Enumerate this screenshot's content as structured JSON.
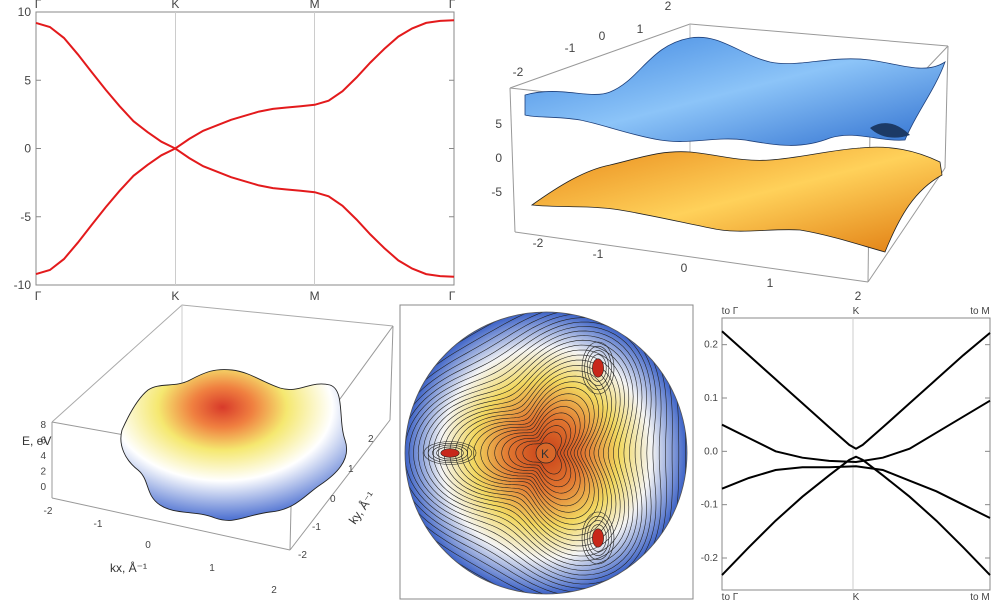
{
  "chart_data": [
    {
      "type": "line",
      "panel": "band-structure-path",
      "x_ticks": [
        "Γ",
        "K",
        "M",
        "Γ"
      ],
      "y_ticks": [
        10,
        5,
        0,
        -5,
        -10
      ],
      "ylim": [
        -10,
        10
      ],
      "grid": "vertical at high-symmetry points",
      "line_color": "#e31a1c",
      "series": [
        {
          "x": [
            0,
            0.1,
            0.2,
            0.3,
            0.4,
            0.5,
            0.6,
            0.7,
            0.8,
            0.9,
            1.0,
            1.1,
            1.2,
            1.3,
            1.4,
            1.5,
            1.6,
            1.7,
            1.8,
            1.9,
            2.0,
            2.1,
            2.2,
            2.3,
            2.4,
            2.5,
            2.6,
            2.7,
            2.8,
            2.9,
            3.0
          ],
          "y": [
            9.2,
            8.9,
            8.1,
            6.9,
            5.6,
            4.3,
            3.1,
            2.0,
            1.2,
            0.5,
            0,
            0.7,
            1.3,
            1.7,
            2.1,
            2.4,
            2.7,
            2.9,
            3.0,
            3.1,
            3.2,
            3.5,
            4.2,
            5.2,
            6.3,
            7.3,
            8.2,
            8.8,
            9.2,
            9.35,
            9.4
          ]
        },
        {
          "x": [
            0,
            0.1,
            0.2,
            0.3,
            0.4,
            0.5,
            0.6,
            0.7,
            0.8,
            0.9,
            1.0,
            1.1,
            1.2,
            1.3,
            1.4,
            1.5,
            1.6,
            1.7,
            1.8,
            1.9,
            2.0,
            2.1,
            2.2,
            2.3,
            2.4,
            2.5,
            2.6,
            2.7,
            2.8,
            2.9,
            3.0
          ],
          "y": [
            -9.2,
            -8.9,
            -8.1,
            -6.9,
            -5.6,
            -4.3,
            -3.1,
            -2.0,
            -1.2,
            -0.5,
            0,
            -0.7,
            -1.3,
            -1.7,
            -2.1,
            -2.4,
            -2.7,
            -2.9,
            -3.0,
            -3.1,
            -3.2,
            -3.5,
            -4.2,
            -5.2,
            -6.3,
            -7.3,
            -8.2,
            -8.8,
            -9.2,
            -9.35,
            -9.4
          ]
        }
      ]
    },
    {
      "type": "surface3d",
      "panel": "band-surfaces-3d",
      "x_ticks": [
        -2,
        -1,
        0,
        1,
        2
      ],
      "y_ticks": [
        -2,
        -1,
        0,
        1,
        2
      ],
      "z_ticks": [
        5,
        0,
        -5
      ],
      "upper_color": "#5aa0e8",
      "lower_color": "#f5a623"
    },
    {
      "type": "surface3d",
      "panel": "valence-band-3d",
      "z_label": "E, eV",
      "z_ticks": [
        8,
        6,
        4,
        2,
        0
      ],
      "x_label": "kx, Å⁻¹",
      "y_label": "ky, Å⁻¹",
      "x_ticks": [
        -2,
        -1,
        0,
        1,
        2
      ],
      "y_ticks": [
        2,
        1,
        0,
        -1,
        -2
      ]
    },
    {
      "type": "heatmap",
      "panel": "contour-map",
      "annotation": "K",
      "minima_count": 3
    },
    {
      "type": "line",
      "panel": "band-structure-zoom",
      "x_ticks_top": [
        "to Γ",
        "K",
        "to M"
      ],
      "x_ticks_bottom": [
        "to Γ",
        "K",
        "to M"
      ],
      "y_ticks": [
        0.2,
        0.1,
        0.0,
        -0.1,
        -0.2
      ],
      "ylim": [
        -0.26,
        0.25
      ],
      "line_color": "#000000",
      "series": [
        {
          "x": [
            -1,
            -0.8,
            -0.6,
            -0.4,
            -0.2,
            -0.05,
            0,
            0.05,
            0.2,
            0.4,
            0.6,
            0.8,
            1
          ],
          "y": [
            0.225,
            0.18,
            0.135,
            0.09,
            0.045,
            0.012,
            0.005,
            0.012,
            0.045,
            0.09,
            0.135,
            0.18,
            0.222
          ]
        },
        {
          "x": [
            -1,
            -0.8,
            -0.6,
            -0.4,
            -0.2,
            0,
            0.2,
            0.4,
            0.6,
            0.8,
            1
          ],
          "y": [
            0.05,
            0.025,
            0.0,
            -0.012,
            -0.018,
            -0.02,
            -0.012,
            0.005,
            0.035,
            0.065,
            0.095
          ]
        },
        {
          "x": [
            -1,
            -0.8,
            -0.6,
            -0.4,
            -0.2,
            0,
            0.2,
            0.4,
            0.6,
            0.8,
            1
          ],
          "y": [
            -0.07,
            -0.05,
            -0.035,
            -0.03,
            -0.03,
            -0.028,
            -0.035,
            -0.055,
            -0.075,
            -0.1,
            -0.125
          ]
        },
        {
          "x": [
            -1,
            -0.8,
            -0.6,
            -0.4,
            -0.2,
            -0.05,
            0,
            0.05,
            0.2,
            0.4,
            0.6,
            0.8,
            1
          ],
          "y": [
            -0.232,
            -0.18,
            -0.13,
            -0.085,
            -0.045,
            -0.016,
            -0.01,
            -0.016,
            -0.045,
            -0.085,
            -0.13,
            -0.18,
            -0.232
          ]
        }
      ]
    }
  ]
}
